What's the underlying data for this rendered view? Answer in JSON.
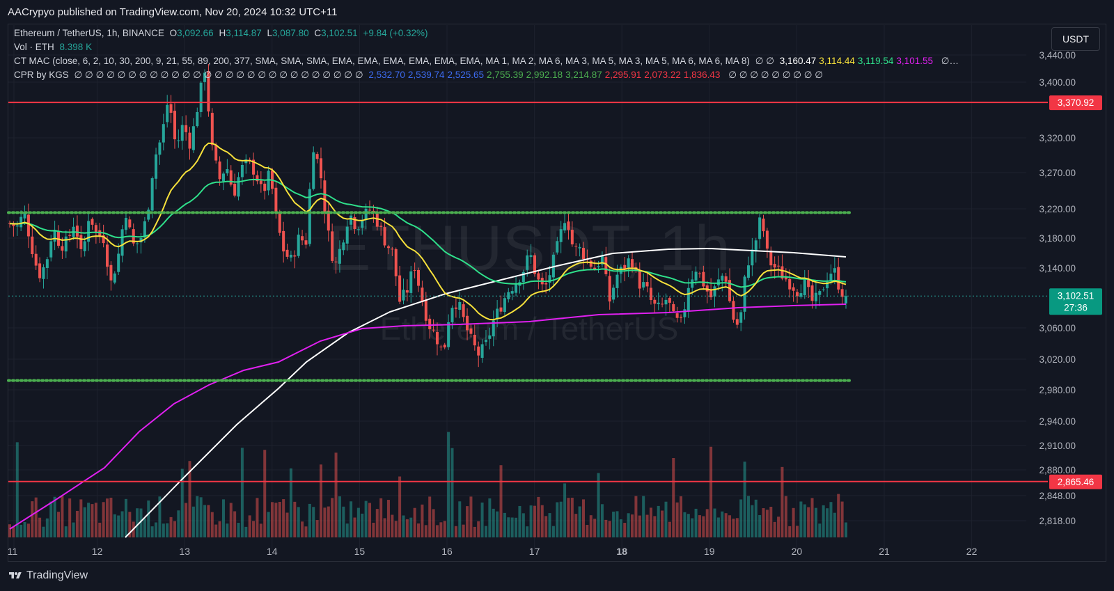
{
  "header": {
    "published": "AACrypyo published on TradingView.com, Nov 20, 2024 10:32 UTC+11"
  },
  "legend": {
    "symbol": "Ethereum / TetherUS, 1h, BINANCE",
    "o_label": "O",
    "o": "3,092.66",
    "h_label": "H",
    "h": "3,114.87",
    "l_label": "L",
    "l": "3,087.80",
    "c_label": "C",
    "c": "3,102.51",
    "change": "+9.84 (+0.32%)",
    "vol_label": "Vol · ETH",
    "vol": "8.398 K",
    "ma_title": "CT MAC (close, 6, 2, 10, 30, 200, 9, 21, 55, 89, 200, 377, SMA, SMA, SMA, EMA, EMA, EMA, EMA, EMA, EMA, MA 1, MA 2, MA 6, MA 3, MA 5, MA 3, MA 5, MA 6, MA 6, MA 8)",
    "ma_null_prefix": "∅ ∅",
    "ma_values": [
      {
        "value": "3,160.47",
        "color": "#ffffff"
      },
      {
        "value": "3,114.44",
        "color": "#f7e13b"
      },
      {
        "value": "3,119.54",
        "color": "#2fe08b"
      },
      {
        "value": "3,101.55",
        "color": "#e020f0"
      }
    ],
    "ma_tail": "∅…",
    "cpr_title": "CPR by KGS",
    "cpr_null_prefix": "∅ ∅ ∅ ∅ ∅ ∅ ∅ ∅ ∅ ∅ ∅ ∅ ∅ ∅ ∅ ∅ ∅ ∅ ∅ ∅ ∅ ∅ ∅ ∅ ∅ ∅ ∅",
    "cpr_values": [
      {
        "value": "2,532.70",
        "color": "#3d6bf0"
      },
      {
        "value": "2,539.74",
        "color": "#3d6bf0"
      },
      {
        "value": "2,525.65",
        "color": "#3d6bf0"
      },
      {
        "value": "2,755.39",
        "color": "#4caf50"
      },
      {
        "value": "2,992.18",
        "color": "#4caf50"
      },
      {
        "value": "3,214.87",
        "color": "#4caf50"
      },
      {
        "value": "2,295.91",
        "color": "#f23645"
      },
      {
        "value": "2,073.22",
        "color": "#f23645"
      },
      {
        "value": "1,836.43",
        "color": "#f23645"
      }
    ],
    "cpr_tail": "∅ ∅ ∅ ∅ ∅ ∅ ∅ ∅ ∅"
  },
  "currency_button": "USDT",
  "watermark": {
    "ticker": "ETHUSDT, 1h",
    "name": "Ethereum / TetherUS"
  },
  "price_axis": [
    "3,440.00",
    "3,400.00",
    "3,320.00",
    "3,270.00",
    "3,220.00",
    "3,180.00",
    "3,140.00",
    "3,060.00",
    "3,020.00",
    "2,980.00",
    "2,940.00",
    "2,910.00",
    "2,880.00",
    "2,848.00",
    "2,818.00"
  ],
  "time_axis": [
    "11",
    "12",
    "13",
    "14",
    "15",
    "16",
    "17",
    "18",
    "19",
    "20",
    "21",
    "22"
  ],
  "price_tags": {
    "upper_line": "3,370.92",
    "lower_line": "2,865.46",
    "last_price": "3,102.51",
    "countdown": "27:36"
  },
  "colors": {
    "up": "#26a69a",
    "down": "#ef5350",
    "line_red": "#f23645",
    "dots": "#4caf50",
    "bg": "#131722"
  },
  "footer": {
    "brand": "TradingView"
  },
  "chart_data": {
    "type": "candlestick",
    "symbol": "ETHUSDT",
    "interval": "1h",
    "price_range": [
      2800,
      3460
    ],
    "days": [
      "11",
      "12",
      "13",
      "14",
      "15",
      "16",
      "17",
      "18",
      "19",
      "20",
      "21",
      "22"
    ],
    "horizontal_lines": [
      {
        "value": 3370.92,
        "style": "solid",
        "color": "#f23645"
      },
      {
        "value": 2865.46,
        "style": "solid",
        "color": "#f23645"
      },
      {
        "value": 3214.87,
        "style": "dotted",
        "color": "#4caf50"
      },
      {
        "value": 2992.18,
        "style": "dotted",
        "color": "#4caf50"
      }
    ],
    "close_path": [
      [
        0,
        3200
      ],
      [
        4,
        3195
      ],
      [
        8,
        3215
      ],
      [
        12,
        3170
      ],
      [
        16,
        3130
      ],
      [
        20,
        3145
      ],
      [
        24,
        3195
      ],
      [
        28,
        3170
      ],
      [
        32,
        3175
      ],
      [
        36,
        3205
      ],
      [
        40,
        3150
      ],
      [
        44,
        3215
      ],
      [
        48,
        3185
      ],
      [
        52,
        3180
      ],
      [
        56,
        3120
      ],
      [
        60,
        3155
      ],
      [
        64,
        3220
      ],
      [
        68,
        3170
      ],
      [
        72,
        3175
      ],
      [
        76,
        3210
      ],
      [
        80,
        3290
      ],
      [
        84,
        3320
      ],
      [
        88,
        3380
      ],
      [
        92,
        3305
      ],
      [
        96,
        3340
      ],
      [
        100,
        3310
      ],
      [
        104,
        3365
      ],
      [
        108,
        3420
      ],
      [
        112,
        3305
      ],
      [
        116,
        3260
      ],
      [
        120,
        3280
      ],
      [
        124,
        3240
      ],
      [
        128,
        3275
      ],
      [
        132,
        3285
      ],
      [
        136,
        3270
      ],
      [
        140,
        3240
      ],
      [
        144,
        3270
      ],
      [
        148,
        3200
      ],
      [
        152,
        3160
      ],
      [
        156,
        3150
      ],
      [
        160,
        3180
      ],
      [
        164,
        3175
      ],
      [
        168,
        3310
      ],
      [
        172,
        3270
      ],
      [
        176,
        3190
      ],
      [
        180,
        3140
      ],
      [
        184,
        3175
      ],
      [
        188,
        3215
      ],
      [
        192,
        3195
      ],
      [
        196,
        3210
      ],
      [
        200,
        3220
      ],
      [
        204,
        3200
      ],
      [
        208,
        3175
      ],
      [
        212,
        3160
      ],
      [
        216,
        3095
      ],
      [
        220,
        3110
      ],
      [
        224,
        3145
      ],
      [
        228,
        3100
      ],
      [
        232,
        3065
      ],
      [
        236,
        3050
      ],
      [
        240,
        3025
      ],
      [
        244,
        3090
      ],
      [
        248,
        3095
      ],
      [
        252,
        3065
      ],
      [
        256,
        3040
      ],
      [
        260,
        3025
      ],
      [
        264,
        3040
      ],
      [
        268,
        3070
      ],
      [
        272,
        3090
      ],
      [
        276,
        3110
      ],
      [
        280,
        3120
      ],
      [
        284,
        3135
      ],
      [
        288,
        3160
      ],
      [
        292,
        3125
      ],
      [
        296,
        3110
      ],
      [
        300,
        3140
      ],
      [
        304,
        3175
      ],
      [
        308,
        3215
      ],
      [
        312,
        3165
      ],
      [
        316,
        3165
      ],
      [
        320,
        3150
      ],
      [
        324,
        3140
      ],
      [
        328,
        3155
      ],
      [
        332,
        3095
      ],
      [
        336,
        3130
      ],
      [
        340,
        3140
      ],
      [
        344,
        3155
      ],
      [
        348,
        3120
      ],
      [
        352,
        3115
      ],
      [
        356,
        3090
      ],
      [
        360,
        3085
      ],
      [
        364,
        3100
      ],
      [
        368,
        3070
      ],
      [
        372,
        3065
      ],
      [
        376,
        3120
      ],
      [
        380,
        3140
      ],
      [
        384,
        3120
      ],
      [
        388,
        3100
      ],
      [
        392,
        3120
      ],
      [
        396,
        3135
      ],
      [
        400,
        3075
      ],
      [
        404,
        3060
      ],
      [
        408,
        3145
      ],
      [
        412,
        3165
      ],
      [
        416,
        3210
      ],
      [
        420,
        3150
      ],
      [
        424,
        3140
      ],
      [
        428,
        3130
      ],
      [
        432,
        3120
      ],
      [
        436,
        3110
      ],
      [
        440,
        3120
      ],
      [
        444,
        3095
      ],
      [
        448,
        3100
      ],
      [
        452,
        3125
      ],
      [
        456,
        3140
      ],
      [
        460,
        3110
      ],
      [
        463,
        3102.51
      ]
    ],
    "moving_averages": [
      {
        "name": "MA (white)",
        "color": "#ffffff",
        "last": 3160.47
      },
      {
        "name": "MA (yellow)",
        "color": "#f7e13b",
        "last": 3114.44
      },
      {
        "name": "MA (green)",
        "color": "#2fe08b",
        "last": 3119.54
      },
      {
        "name": "MA (magenta)",
        "color": "#e020f0",
        "last": 3101.55
      }
    ],
    "last": {
      "open": 3092.66,
      "high": 3114.87,
      "low": 3087.8,
      "close": 3102.51,
      "change": 9.84,
      "change_pct": 0.32,
      "volume_k": 8.398
    }
  }
}
